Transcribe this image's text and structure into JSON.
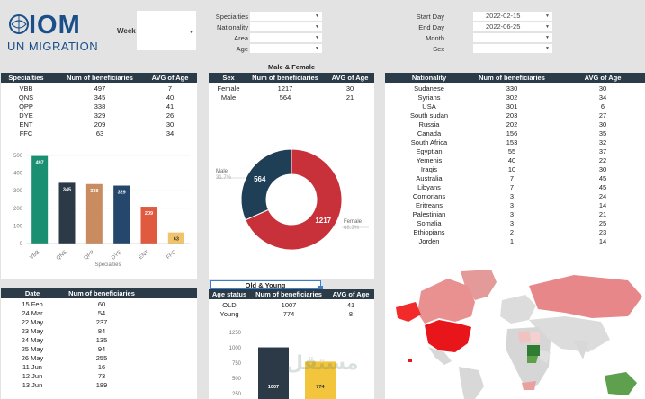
{
  "logo": {
    "brand": "IOM",
    "sub": "UN MIGRATION"
  },
  "filters": {
    "week_label": "Week",
    "left": [
      {
        "label": "Specialties",
        "value": ""
      },
      {
        "label": "Nationality",
        "value": ""
      },
      {
        "label": "Area",
        "value": ""
      },
      {
        "label": "Age",
        "value": ""
      }
    ],
    "right": [
      {
        "label": "Start Day",
        "value": "2022-02-15"
      },
      {
        "label": "End Day",
        "value": "2022-06-25"
      },
      {
        "label": "Month",
        "value": ""
      },
      {
        "label": "Sex",
        "value": ""
      }
    ]
  },
  "specialties_table": {
    "headers": [
      "Specialties",
      "Num of beneficiaries",
      "AVG of Age"
    ],
    "rows": [
      [
        "VBB",
        "497",
        "7"
      ],
      [
        "QNS",
        "345",
        "40"
      ],
      [
        "QPP",
        "338",
        "41"
      ],
      [
        "DYE",
        "329",
        "26"
      ],
      [
        "ENT",
        "209",
        "30"
      ],
      [
        "FFC",
        "63",
        "34"
      ]
    ]
  },
  "sex_section": {
    "title": "Male & Female",
    "headers": [
      "Sex",
      "Num of beneficiaries",
      "AVG of Age"
    ],
    "rows": [
      [
        "Female",
        "1217",
        "30"
      ],
      [
        "Male",
        "564",
        "21"
      ]
    ],
    "donut_labels": {
      "male_name": "Male",
      "male_pct": "31.7%",
      "female_name": "Female",
      "female_pct": "68.3%"
    }
  },
  "nationality_table": {
    "headers": [
      "Nationality",
      "Num of beneficiaries",
      "AVG of Age"
    ],
    "rows": [
      [
        "Sudanese",
        "330",
        "30"
      ],
      [
        "Syrians",
        "302",
        "34"
      ],
      [
        "USA",
        "301",
        "6"
      ],
      [
        "South sudan",
        "203",
        "27"
      ],
      [
        "Russia",
        "202",
        "30"
      ],
      [
        "Canada",
        "156",
        "35"
      ],
      [
        "South Africa",
        "153",
        "32"
      ],
      [
        "Egyptian",
        "55",
        "37"
      ],
      [
        "Yemenis",
        "40",
        "22"
      ],
      [
        "Iraqis",
        "10",
        "30"
      ],
      [
        "Australia",
        "7",
        "45"
      ],
      [
        "Libyans",
        "7",
        "45"
      ],
      [
        "Comorians",
        "3",
        "24"
      ],
      [
        "Eritreans",
        "3",
        "14"
      ],
      [
        "Palestinian",
        "3",
        "21"
      ],
      [
        "Somalia",
        "3",
        "25"
      ],
      [
        "Ethiopians",
        "2",
        "23"
      ],
      [
        "Jorden",
        "1",
        "14"
      ]
    ]
  },
  "date_table": {
    "headers": [
      "Date",
      "Num of beneficiaries"
    ],
    "rows": [
      [
        "15 Feb",
        "60"
      ],
      [
        "24 Mar",
        "54"
      ],
      [
        "22 May",
        "237"
      ],
      [
        "23 May",
        "84"
      ],
      [
        "24 May",
        "135"
      ],
      [
        "25 May",
        "94"
      ],
      [
        "26 May",
        "255"
      ],
      [
        "11 Jun",
        "16"
      ],
      [
        "12 Jun",
        "73"
      ],
      [
        "13 Jun",
        "189"
      ]
    ]
  },
  "age_section": {
    "title": "Old & Young",
    "headers": [
      "Age status",
      "Num of beneficiaries",
      "AVG of Age"
    ],
    "rows": [
      [
        "OLD",
        "1007",
        "41"
      ],
      [
        "Young",
        "774",
        "8"
      ]
    ]
  },
  "watermark": "مستقل",
  "colors": {
    "header_bg": "#2b3b47",
    "male": "#1f3f56",
    "female": "#c8303a"
  },
  "chart_data": [
    {
      "type": "bar",
      "categories": [
        "VBB",
        "QNS",
        "QPP",
        "DYE",
        "ENT",
        "FFC"
      ],
      "values": [
        497,
        345,
        338,
        329,
        209,
        63
      ],
      "colors": [
        "#1a8f72",
        "#2c3a47",
        "#c98c60",
        "#24476b",
        "#e05a40",
        "#f0c46a"
      ],
      "xlabel": "Specialties",
      "ylim": [
        0,
        500
      ],
      "yticks": [
        0,
        100,
        200,
        300,
        400,
        500
      ]
    },
    {
      "type": "pie",
      "categories": [
        "Male",
        "Female"
      ],
      "values": [
        564,
        1217
      ],
      "percent": [
        "31.7%",
        "68.3%"
      ]
    },
    {
      "type": "bar",
      "categories": [
        "OLD",
        "Young"
      ],
      "values": [
        1007,
        774
      ],
      "colors": [
        "#2c3a47",
        "#f2c53d"
      ],
      "ylim": [
        250,
        1250
      ],
      "yticks": [
        250,
        500,
        750,
        1000,
        1250
      ]
    }
  ]
}
